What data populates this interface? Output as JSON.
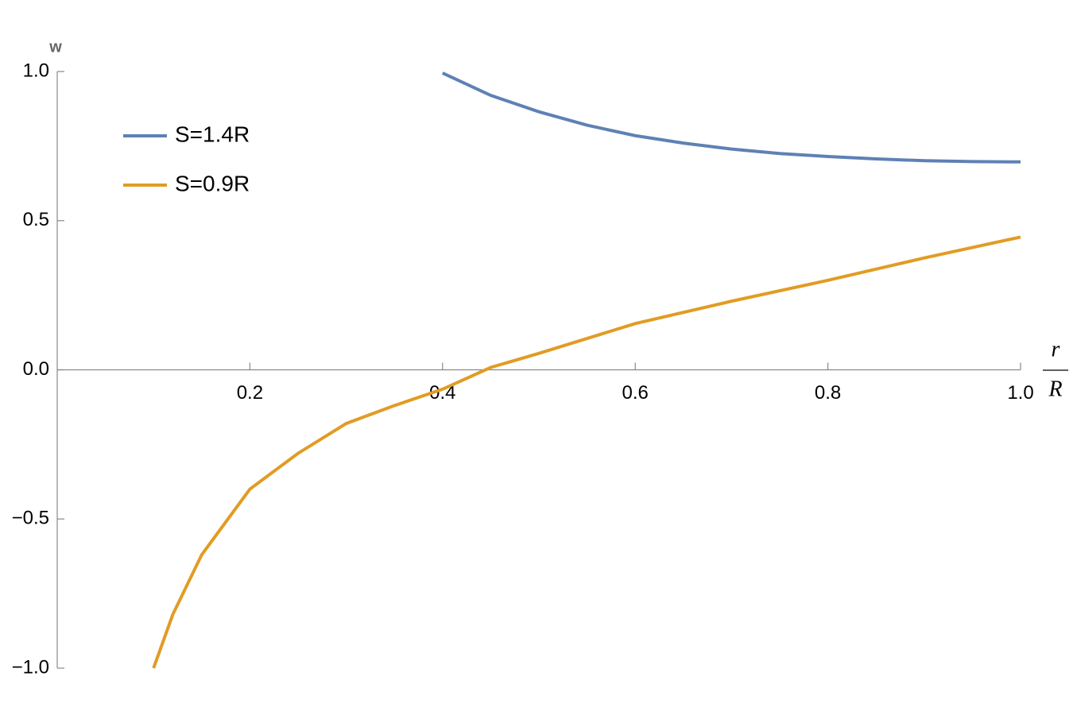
{
  "chart_data": {
    "type": "line",
    "y_label": "w",
    "x_label": {
      "numerator": "r",
      "denominator": "R"
    },
    "xlim": [
      0,
      1
    ],
    "ylim": [
      -1,
      1
    ],
    "xticks": [
      0.2,
      0.4,
      0.6,
      0.8,
      {
        "value": 1,
        "label": "1.0"
      }
    ],
    "yticks": [
      {
        "value": -1,
        "label": "−1.0"
      },
      {
        "value": -0.5,
        "label": "−0.5"
      },
      {
        "value": 0,
        "label": "0.0"
      },
      0.5,
      {
        "value": 1,
        "label": "1.0"
      }
    ],
    "legend": "upper left",
    "series": [
      {
        "name": "S=1.4R",
        "color": "#5e81b5",
        "x": [
          0.4,
          0.45,
          0.5,
          0.55,
          0.6,
          0.65,
          0.7,
          0.75,
          0.8,
          0.85,
          0.9,
          0.95,
          1.0
        ],
        "values": [
          0.995,
          0.92,
          0.865,
          0.82,
          0.785,
          0.76,
          0.74,
          0.725,
          0.715,
          0.707,
          0.701,
          0.698,
          0.697
        ]
      },
      {
        "name": "S=0.9R",
        "color": "#e19c24",
        "x": [
          0.1,
          0.12,
          0.15,
          0.2,
          0.25,
          0.3,
          0.35,
          0.4,
          0.45,
          0.5,
          0.6,
          0.7,
          0.8,
          0.9,
          1.0
        ],
        "values": [
          -1,
          -0.82,
          -0.62,
          -0.4,
          -0.28,
          -0.18,
          -0.12,
          -0.065,
          0.008,
          0.055,
          0.155,
          0.23,
          0.3,
          0.375,
          0.445
        ]
      }
    ]
  }
}
